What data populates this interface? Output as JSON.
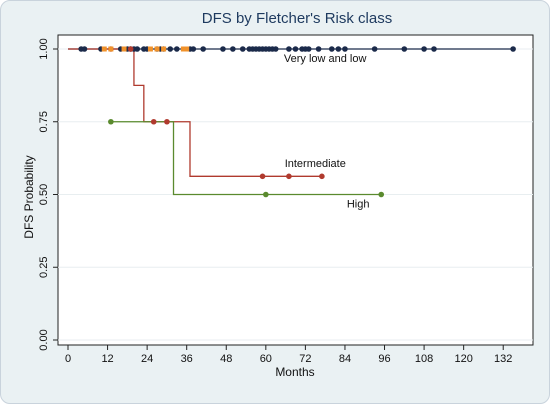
{
  "chart_data": {
    "type": "line",
    "title": "DFS by Fletcher's Risk class",
    "xlabel": "Months",
    "ylabel": "DFS Probability",
    "xlim": [
      0,
      138
    ],
    "ylim": [
      0,
      1
    ],
    "xticks": [
      0,
      12,
      24,
      36,
      48,
      60,
      72,
      84,
      96,
      108,
      120,
      132
    ],
    "yticks": [
      0,
      0.25,
      0.5,
      0.75,
      1
    ],
    "ytick_labels": [
      "0.00",
      "0.25",
      "0.50",
      "0.75",
      "1.00"
    ],
    "grid": true,
    "series": [
      {
        "name": "Very low and low",
        "color": "#1b2a4a",
        "step_x": [
          0,
          135
        ],
        "step_y": [
          1.0,
          1.0
        ],
        "censored_x": [
          4,
          5,
          10,
          16,
          18,
          19,
          20,
          21,
          23,
          24,
          27,
          28,
          29,
          31,
          33,
          37,
          38,
          41,
          47,
          50,
          53,
          55,
          56,
          57,
          58,
          59,
          60,
          61,
          62,
          63,
          67,
          69,
          71,
          72,
          73,
          76,
          80,
          82,
          84,
          93,
          102,
          108,
          111,
          135
        ],
        "censored_y": 1.0
      },
      {
        "name": "Intermediate",
        "color": "#b03a2e",
        "step_x": [
          0,
          20,
          23,
          37,
          77
        ],
        "step_y": [
          1.0,
          0.875,
          0.75,
          0.5625,
          0.5625
        ],
        "censored_x": [
          13,
          19,
          26,
          30,
          59,
          67,
          77
        ],
        "censored_y_values": [
          1.0,
          1.0,
          0.75,
          0.75,
          0.5625,
          0.5625,
          0.5625
        ]
      },
      {
        "name": "High",
        "color": "#5a8a2e",
        "step_x": [
          13,
          32,
          95
        ],
        "step_y": [
          0.75,
          0.5,
          0.5
        ],
        "censored_x": [
          13,
          60,
          95
        ],
        "censored_y_values": [
          0.75,
          0.5,
          0.5
        ]
      }
    ],
    "orange_censor_x": [
      11,
      13,
      17,
      25,
      27,
      29,
      35,
      36
    ],
    "orange_censor_y": 1.0,
    "orange_color": "#f0922b",
    "annotations": [
      {
        "text": "Very low and low",
        "x": 78,
        "y": 0.955
      },
      {
        "text": "Intermediate",
        "x": 75,
        "y": 0.595
      },
      {
        "text": "High",
        "x": 88,
        "y": 0.455
      }
    ]
  }
}
